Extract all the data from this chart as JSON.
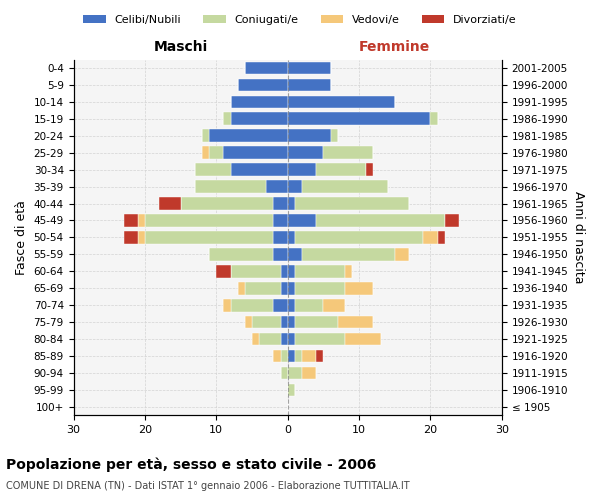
{
  "age_groups": [
    "100+",
    "95-99",
    "90-94",
    "85-89",
    "80-84",
    "75-79",
    "70-74",
    "65-69",
    "60-64",
    "55-59",
    "50-54",
    "45-49",
    "40-44",
    "35-39",
    "30-34",
    "25-29",
    "20-24",
    "15-19",
    "10-14",
    "5-9",
    "0-4"
  ],
  "birth_years": [
    "≤ 1905",
    "1906-1910",
    "1911-1915",
    "1916-1920",
    "1921-1925",
    "1926-1930",
    "1931-1935",
    "1936-1940",
    "1941-1945",
    "1946-1950",
    "1951-1955",
    "1956-1960",
    "1961-1965",
    "1966-1970",
    "1971-1975",
    "1976-1980",
    "1981-1985",
    "1986-1990",
    "1991-1995",
    "1996-2000",
    "2001-2005"
  ],
  "colors": {
    "celibi": "#4472c4",
    "coniugati": "#c5d9a0",
    "vedovi": "#f5c87a",
    "divorziati": "#c0392b"
  },
  "males": {
    "celibi": [
      0,
      0,
      0,
      0,
      1,
      1,
      2,
      1,
      1,
      2,
      2,
      2,
      2,
      3,
      8,
      9,
      11,
      8,
      8,
      7,
      6
    ],
    "coniugati": [
      0,
      0,
      1,
      1,
      3,
      4,
      6,
      5,
      7,
      9,
      18,
      18,
      13,
      10,
      5,
      2,
      1,
      1,
      0,
      0,
      0
    ],
    "vedovi": [
      0,
      0,
      0,
      1,
      1,
      1,
      1,
      1,
      0,
      0,
      1,
      1,
      0,
      0,
      0,
      1,
      0,
      0,
      0,
      0,
      0
    ],
    "divorziati": [
      0,
      0,
      0,
      0,
      0,
      0,
      0,
      0,
      2,
      0,
      2,
      2,
      3,
      0,
      0,
      0,
      0,
      0,
      0,
      0,
      0
    ]
  },
  "females": {
    "celibi": [
      0,
      0,
      0,
      1,
      1,
      1,
      1,
      1,
      1,
      2,
      1,
      4,
      1,
      2,
      4,
      5,
      6,
      20,
      15,
      6,
      6
    ],
    "coniugati": [
      0,
      1,
      2,
      1,
      7,
      6,
      4,
      7,
      7,
      13,
      18,
      18,
      16,
      12,
      7,
      7,
      1,
      1,
      0,
      0,
      0
    ],
    "vedovi": [
      0,
      0,
      2,
      2,
      5,
      5,
      3,
      4,
      1,
      2,
      2,
      0,
      0,
      0,
      0,
      0,
      0,
      0,
      0,
      0,
      0
    ],
    "divorziati": [
      0,
      0,
      0,
      1,
      0,
      0,
      0,
      0,
      0,
      0,
      1,
      2,
      0,
      0,
      1,
      0,
      0,
      0,
      0,
      0,
      0
    ]
  },
  "xlim": 30,
  "title": "Popolazione per età, sesso e stato civile - 2006",
  "subtitle": "COMUNE DI DRENA (TN) - Dati ISTAT 1° gennaio 2006 - Elaborazione TUTTITALIA.IT",
  "ylabel_left": "Fasce di età",
  "ylabel_right": "Anni di nascita",
  "xlabel_left": "Maschi",
  "xlabel_right": "Femmine"
}
